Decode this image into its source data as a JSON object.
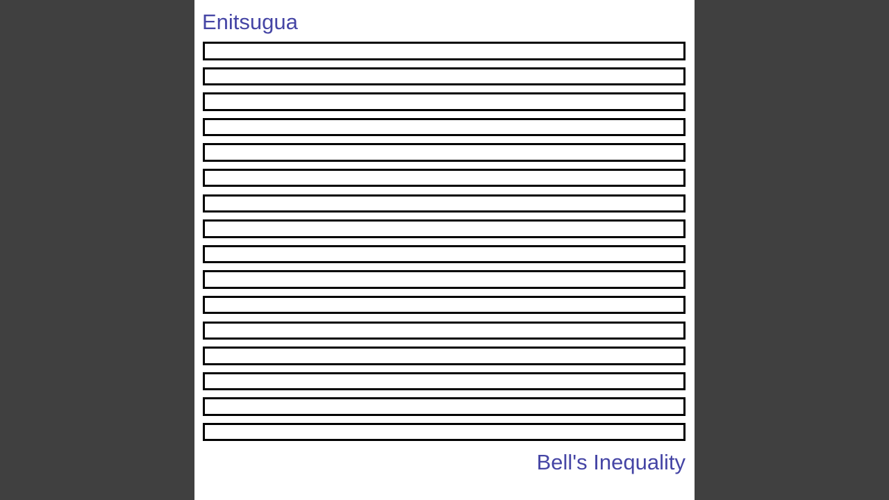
{
  "cover": {
    "artist": "Enitsugua",
    "title": "Bell's Inequality",
    "text_color": "#4545a5",
    "background_color": "#ffffff",
    "frame_color": "#404040"
  }
}
